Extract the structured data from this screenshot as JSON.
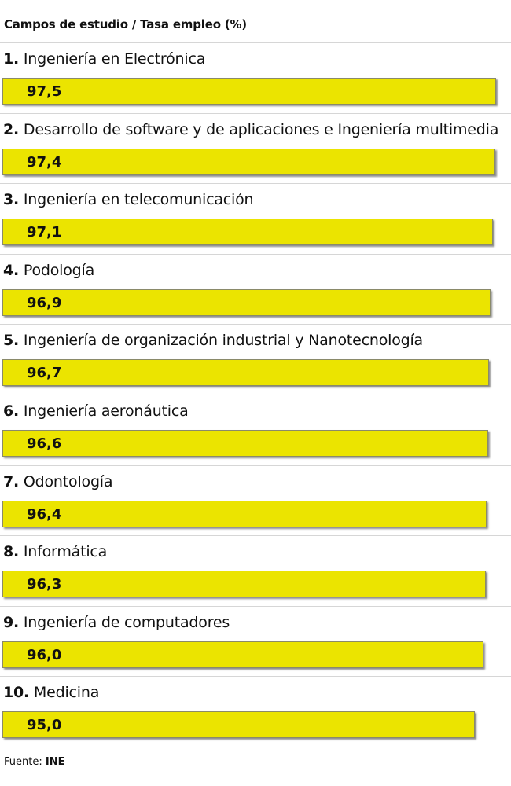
{
  "header": {
    "title": "Campos de estudio / Tasa empleo (%)"
  },
  "chart_data": {
    "type": "bar",
    "orientation": "horizontal",
    "title": "Campos de estudio / Tasa empleo (%)",
    "categories": [
      "Ingeniería en Electrónica",
      "Desarrollo de software y de aplicaciones e Ingeniería multimedia",
      "Ingeniería en telecomunicación",
      "Podología",
      "Ingeniería de organización industrial y Nanotecnología",
      "Ingeniería aeronáutica",
      "Odontología",
      "Informática",
      "Ingeniería de computadores",
      "Medicina"
    ],
    "ranks": [
      "1.",
      "2.",
      "3.",
      "4.",
      "5.",
      "6.",
      "7.",
      "8.",
      "9.",
      "10."
    ],
    "values": [
      97.5,
      97.4,
      97.1,
      96.9,
      96.7,
      96.6,
      96.4,
      96.3,
      96.0,
      95.0
    ],
    "value_labels": [
      "97,5",
      "97,4",
      "97,1",
      "96,9",
      "96,7",
      "96,6",
      "96,4",
      "96,3",
      "96,0",
      "95,0"
    ],
    "bar_color": "#ebe400",
    "xlim": [
      0,
      100
    ]
  },
  "footer": {
    "label": "Fuente:",
    "source": "INE"
  }
}
